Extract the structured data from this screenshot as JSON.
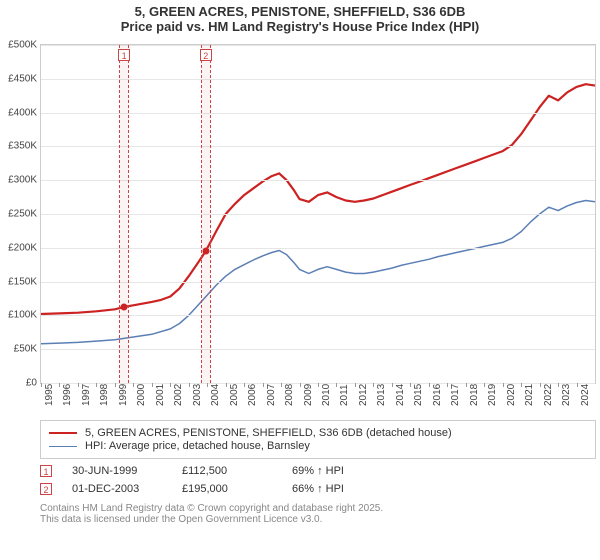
{
  "title": {
    "line1": "5, GREEN ACRES, PENISTONE, SHEFFIELD, S36 6DB",
    "line2": "Price paid vs. HM Land Registry's House Price Index (HPI)",
    "fontsize": 13
  },
  "chart": {
    "plot_bg": "#ffffff",
    "grid_color": "#e6e6e6",
    "border_color": "#cccccc",
    "x": {
      "min_year": 1995,
      "max_year": 2025,
      "ticks": [
        1995,
        1996,
        1997,
        1998,
        1999,
        2000,
        2001,
        2002,
        2003,
        2004,
        2005,
        2006,
        2007,
        2008,
        2009,
        2010,
        2011,
        2012,
        2013,
        2014,
        2015,
        2016,
        2017,
        2018,
        2019,
        2020,
        2021,
        2022,
        2023,
        2024
      ]
    },
    "y": {
      "min": 0,
      "max": 500000,
      "ticks": [
        {
          "v": 0,
          "label": "£0"
        },
        {
          "v": 50000,
          "label": "£50K"
        },
        {
          "v": 100000,
          "label": "£100K"
        },
        {
          "v": 150000,
          "label": "£150K"
        },
        {
          "v": 200000,
          "label": "£200K"
        },
        {
          "v": 250000,
          "label": "£250K"
        },
        {
          "v": 300000,
          "label": "£300K"
        },
        {
          "v": 350000,
          "label": "£350K"
        },
        {
          "v": 400000,
          "label": "£400K"
        },
        {
          "v": 450000,
          "label": "£450K"
        },
        {
          "v": 500000,
          "label": "£500K"
        }
      ]
    },
    "series": {
      "property": {
        "legend": "5, GREEN ACRES, PENISTONE, SHEFFIELD, S36 6DB (detached house)",
        "color": "#cc2222",
        "width": 2.2,
        "data": [
          [
            1995.0,
            102000
          ],
          [
            1996.0,
            103000
          ],
          [
            1997.0,
            104000
          ],
          [
            1998.0,
            106000
          ],
          [
            1999.0,
            109000
          ],
          [
            1999.5,
            112500
          ],
          [
            2000.0,
            115000
          ],
          [
            2001.0,
            120000
          ],
          [
            2001.5,
            123000
          ],
          [
            2002.0,
            128000
          ],
          [
            2002.5,
            140000
          ],
          [
            2003.0,
            158000
          ],
          [
            2003.5,
            178000
          ],
          [
            2003.92,
            195000
          ],
          [
            2004.5,
            225000
          ],
          [
            2005.0,
            250000
          ],
          [
            2005.5,
            265000
          ],
          [
            2006.0,
            278000
          ],
          [
            2006.5,
            288000
          ],
          [
            2007.0,
            298000
          ],
          [
            2007.5,
            306000
          ],
          [
            2007.9,
            310000
          ],
          [
            2008.3,
            300000
          ],
          [
            2008.7,
            285000
          ],
          [
            2009.0,
            272000
          ],
          [
            2009.5,
            268000
          ],
          [
            2010.0,
            278000
          ],
          [
            2010.5,
            282000
          ],
          [
            2011.0,
            275000
          ],
          [
            2011.5,
            270000
          ],
          [
            2012.0,
            268000
          ],
          [
            2012.5,
            270000
          ],
          [
            2013.0,
            273000
          ],
          [
            2013.5,
            278000
          ],
          [
            2014.0,
            283000
          ],
          [
            2014.5,
            288000
          ],
          [
            2015.0,
            293000
          ],
          [
            2015.5,
            298000
          ],
          [
            2016.0,
            303000
          ],
          [
            2016.5,
            308000
          ],
          [
            2017.0,
            313000
          ],
          [
            2017.5,
            318000
          ],
          [
            2018.0,
            323000
          ],
          [
            2018.5,
            328000
          ],
          [
            2019.0,
            333000
          ],
          [
            2019.5,
            338000
          ],
          [
            2020.0,
            343000
          ],
          [
            2020.5,
            352000
          ],
          [
            2021.0,
            368000
          ],
          [
            2021.5,
            388000
          ],
          [
            2022.0,
            408000
          ],
          [
            2022.5,
            425000
          ],
          [
            2023.0,
            418000
          ],
          [
            2023.5,
            430000
          ],
          [
            2024.0,
            438000
          ],
          [
            2024.5,
            442000
          ],
          [
            2025.0,
            440000
          ]
        ]
      },
      "hpi": {
        "legend": "HPI: Average price, detached house, Barnsley",
        "color": "#5b7fb5",
        "width": 1.5,
        "data": [
          [
            1995.0,
            58000
          ],
          [
            1996.0,
            59000
          ],
          [
            1997.0,
            60000
          ],
          [
            1998.0,
            62000
          ],
          [
            1999.0,
            64000
          ],
          [
            2000.0,
            68000
          ],
          [
            2001.0,
            72000
          ],
          [
            2002.0,
            80000
          ],
          [
            2002.5,
            88000
          ],
          [
            2003.0,
            100000
          ],
          [
            2003.5,
            115000
          ],
          [
            2004.0,
            130000
          ],
          [
            2004.5,
            145000
          ],
          [
            2005.0,
            158000
          ],
          [
            2005.5,
            168000
          ],
          [
            2006.0,
            175000
          ],
          [
            2006.5,
            182000
          ],
          [
            2007.0,
            188000
          ],
          [
            2007.5,
            193000
          ],
          [
            2007.9,
            196000
          ],
          [
            2008.3,
            190000
          ],
          [
            2008.7,
            178000
          ],
          [
            2009.0,
            168000
          ],
          [
            2009.5,
            162000
          ],
          [
            2010.0,
            168000
          ],
          [
            2010.5,
            172000
          ],
          [
            2011.0,
            168000
          ],
          [
            2011.5,
            164000
          ],
          [
            2012.0,
            162000
          ],
          [
            2012.5,
            162000
          ],
          [
            2013.0,
            164000
          ],
          [
            2013.5,
            167000
          ],
          [
            2014.0,
            170000
          ],
          [
            2014.5,
            174000
          ],
          [
            2015.0,
            177000
          ],
          [
            2015.5,
            180000
          ],
          [
            2016.0,
            183000
          ],
          [
            2016.5,
            187000
          ],
          [
            2017.0,
            190000
          ],
          [
            2017.5,
            193000
          ],
          [
            2018.0,
            196000
          ],
          [
            2018.5,
            199000
          ],
          [
            2019.0,
            202000
          ],
          [
            2019.5,
            205000
          ],
          [
            2020.0,
            208000
          ],
          [
            2020.5,
            214000
          ],
          [
            2021.0,
            224000
          ],
          [
            2021.5,
            238000
          ],
          [
            2022.0,
            250000
          ],
          [
            2022.5,
            260000
          ],
          [
            2023.0,
            255000
          ],
          [
            2023.5,
            262000
          ],
          [
            2024.0,
            267000
          ],
          [
            2024.5,
            270000
          ],
          [
            2025.0,
            268000
          ]
        ]
      }
    },
    "sales": [
      {
        "num": "1",
        "date": "30-JUN-1999",
        "year": 1999.5,
        "price_val": 112500,
        "price": "£112,500",
        "hpi_pct": "69% ↑ HPI"
      },
      {
        "num": "2",
        "date": "01-DEC-2003",
        "year": 2003.92,
        "price_val": 195000,
        "price": "£195,000",
        "hpi_pct": "66% ↑ HPI"
      }
    ],
    "sale_marker": {
      "box_color": "#cc4444",
      "band_fill": "rgba(200,60,60,0.06)",
      "dot_color": "#cc2222"
    }
  },
  "license": {
    "line1": "Contains HM Land Registry data © Crown copyright and database right 2025.",
    "line2": "This data is licensed under the Open Government Licence v3.0."
  }
}
